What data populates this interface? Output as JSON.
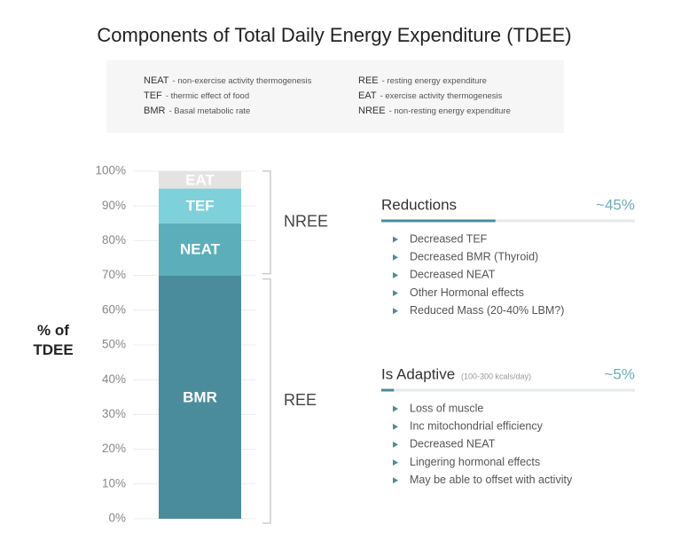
{
  "chart_data": {
    "type": "stacked_bar",
    "title": "Components of Total Daily Energy Expenditure (TDEE)",
    "notes": [
      {
        "abbr": "NEAT",
        "text": "- non-exercise activity thermogenesis"
      },
      {
        "abbr": "TEF",
        "text": "- thermic effect of food"
      },
      {
        "abbr": "BMR",
        "text": "- Basal metabolic rate"
      },
      {
        "abbr": "REE",
        "text": "- resting energy expenditure"
      },
      {
        "abbr": "EAT",
        "text": "- exercise activity thermogenesis"
      },
      {
        "abbr": "NREE",
        "text": "- non-resting energy expenditure"
      }
    ],
    "ylabel": "% of TDEE",
    "ylim": [
      0,
      100
    ],
    "yticks": [
      {
        "value": 0,
        "label": "0%"
      },
      {
        "value": 10,
        "label": "10%"
      },
      {
        "value": 20,
        "label": "20%"
      },
      {
        "value": 30,
        "label": "30%"
      },
      {
        "value": 40,
        "label": "40%"
      },
      {
        "value": 50,
        "label": "50%"
      },
      {
        "value": 60,
        "label": "60%"
      },
      {
        "value": 70,
        "label": "70%"
      },
      {
        "value": 80,
        "label": "80%"
      },
      {
        "value": 90,
        "label": "90%"
      },
      {
        "value": 100,
        "label": "100%"
      }
    ],
    "grid": true,
    "series": [
      {
        "name": "BMR",
        "color": "#4b8c9c",
        "values": [
          70
        ]
      },
      {
        "name": "NEAT",
        "color": "#5cafba",
        "values": [
          15
        ]
      },
      {
        "name": "TEF",
        "color": "#7ed0da",
        "values": [
          10
        ]
      },
      {
        "name": "EAT",
        "color": "#e3e3e1",
        "values": [
          5
        ]
      }
    ],
    "brackets": [
      {
        "label": "NREE",
        "from": 70,
        "to": 100
      },
      {
        "label": "REE",
        "from": 0,
        "to": 70
      }
    ],
    "panels": [
      {
        "title": "Reductions",
        "value": 45,
        "value_label": "~45%",
        "items": [
          "Decreased TEF",
          "Decreased BMR (Thyroid)",
          "Decreased NEAT",
          "Other Hormonal effects",
          "Reduced Mass (20-40% LBM?)"
        ]
      },
      {
        "title": "Is Adaptive",
        "subtitle": "(100-300 kcals/day)",
        "value": 5,
        "value_label": "~5%",
        "items": [
          "Loss of muscle",
          "Inc mitochondrial efficiency",
          "Decreased NEAT",
          "Lingering hormonal effects",
          "May be able to offset with activity"
        ]
      }
    ]
  }
}
